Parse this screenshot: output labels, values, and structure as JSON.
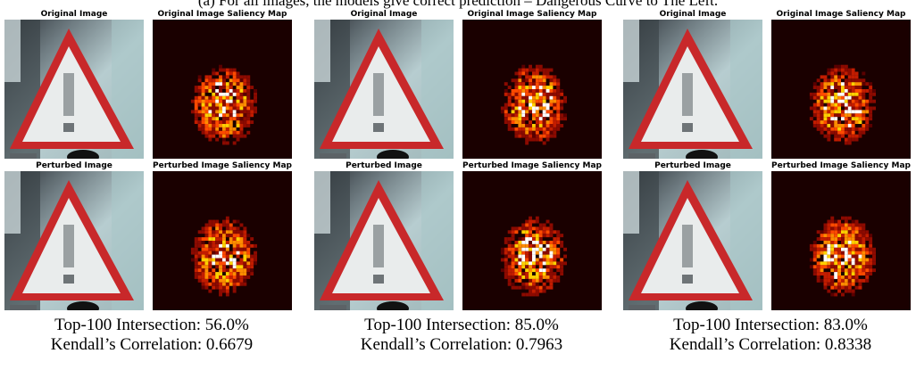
{
  "caption": "(a) For all images, the models give correct prediction – Dangerous Curve to The Left.",
  "titles": {
    "original": "Original Image",
    "original_saliency": "Original Image Saliency Map",
    "perturbed": "Perturbed Image",
    "perturbed_saliency": "Perturbed Image Saliency Map"
  },
  "results": [
    {
      "intersection": "Top-100 Intersection: 56.0%",
      "kendall": "Kendall’s Correlation: 0.6679"
    },
    {
      "intersection": "Top-100 Intersection: 85.0%",
      "kendall": "Kendall’s Correlation: 0.7963"
    },
    {
      "intersection": "Top-100 Intersection: 83.0%",
      "kendall": "Kendall’s Correlation: 0.8338"
    }
  ],
  "colors": {
    "sign_red": "#c8282a",
    "saliency_bg": "#1a0000",
    "saliency_hot": "#ff5a00"
  }
}
